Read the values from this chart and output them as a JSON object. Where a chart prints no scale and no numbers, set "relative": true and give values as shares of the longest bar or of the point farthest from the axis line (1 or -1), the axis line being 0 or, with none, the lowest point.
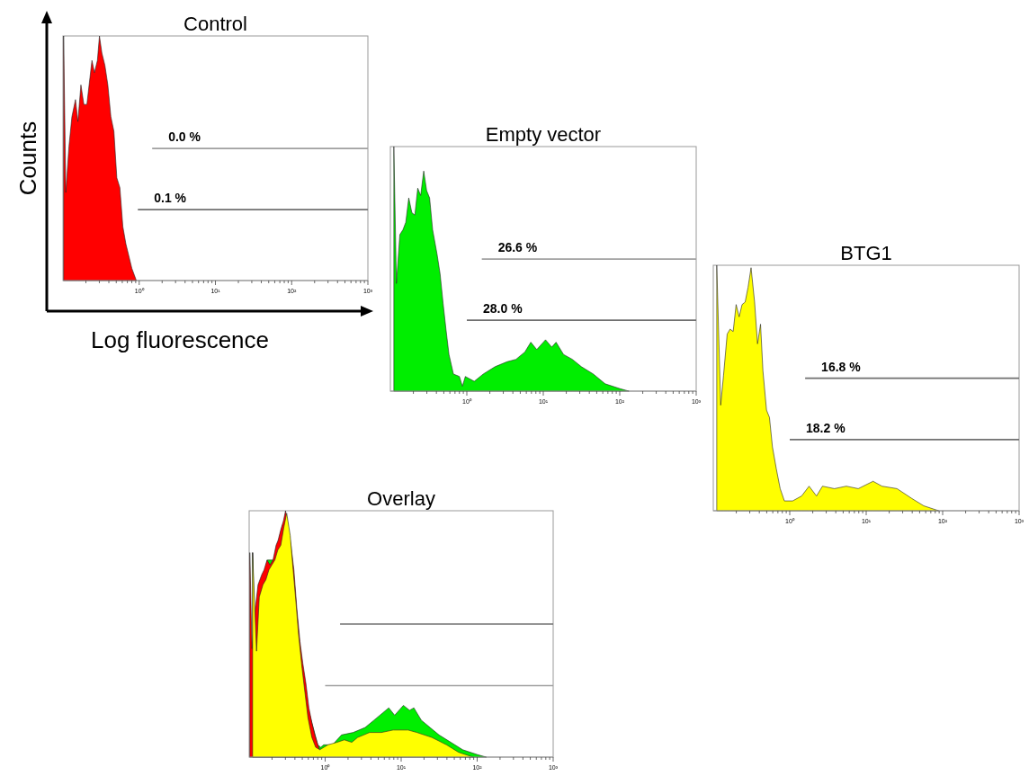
{
  "chart_data": [
    {
      "type": "area",
      "title": "Control",
      "xlabel": "Log fluorescence",
      "ylabel": "Counts",
      "log": "x",
      "relative": true,
      "xlim": [
        0.1,
        1000
      ],
      "xticks": [
        {
          "value": 0.2,
          "label": null
        },
        {
          "value": 0.3,
          "label": null
        },
        {
          "value": 0.4,
          "label": null
        },
        {
          "value": 0.5,
          "label": null
        },
        {
          "value": 0.6,
          "label": null
        },
        {
          "value": 0.7,
          "label": null
        },
        {
          "value": 0.8,
          "label": null
        },
        {
          "value": 0.9,
          "label": null
        },
        {
          "value": 1,
          "label": "10⁰"
        },
        {
          "value": 2,
          "label": null
        },
        {
          "value": 3,
          "label": null
        },
        {
          "value": 4,
          "label": null
        },
        {
          "value": 5,
          "label": null
        },
        {
          "value": 6,
          "label": null
        },
        {
          "value": 7,
          "label": null
        },
        {
          "value": 8,
          "label": null
        },
        {
          "value": 9,
          "label": null
        },
        {
          "value": 10,
          "label": "10¹"
        },
        {
          "value": 20,
          "label": null
        },
        {
          "value": 30,
          "label": null
        },
        {
          "value": 40,
          "label": null
        },
        {
          "value": 50,
          "label": null
        },
        {
          "value": 60,
          "label": null
        },
        {
          "value": 70,
          "label": null
        },
        {
          "value": 80,
          "label": null
        },
        {
          "value": 90,
          "label": null
        },
        {
          "value": 100,
          "label": "10²"
        },
        {
          "value": 200,
          "label": null
        },
        {
          "value": 300,
          "label": null
        },
        {
          "value": 400,
          "label": null
        },
        {
          "value": 500,
          "label": null
        },
        {
          "value": 600,
          "label": null
        },
        {
          "value": 700,
          "label": null
        },
        {
          "value": 800,
          "label": null
        },
        {
          "value": 900,
          "label": null
        },
        {
          "value": 1000,
          "label": "10³"
        }
      ],
      "series": [
        {
          "color": "#ff0000",
          "x": [
            0.102,
            0.109,
            0.12,
            0.131,
            0.146,
            0.157,
            0.172,
            0.188,
            0.206,
            0.226,
            0.24,
            0.259,
            0.283,
            0.301,
            0.324,
            0.355,
            0.388,
            0.425,
            0.466,
            0.509,
            0.558,
            0.611,
            0.669,
            0.732,
            0.801,
            0.918
          ],
          "values": [
            1.0,
            0.36,
            0.55,
            0.67,
            0.74,
            0.65,
            0.8,
            0.72,
            0.72,
            0.83,
            0.9,
            0.85,
            0.9,
            1.0,
            0.93,
            0.88,
            0.8,
            0.67,
            0.61,
            0.42,
            0.38,
            0.22,
            0.15,
            0.1,
            0.05,
            0.0
          ]
        },
        {
          "type": "line",
          "color": "#a0a0a0",
          "x": [
            1.48,
            1000
          ],
          "values": [
            0.54,
            0.54
          ]
        },
        {
          "type": "line",
          "color": "#707070",
          "x": [
            0.96,
            1000
          ],
          "values": [
            0.29,
            0.29
          ]
        }
      ],
      "annotations": [
        {
          "text": "0.0 %",
          "x": 1.48,
          "y": 0.54
        },
        {
          "text": "0.1 %",
          "x": 0.96,
          "y": 0.29
        }
      ]
    },
    {
      "type": "area",
      "title": "Empty vector",
      "log": "x",
      "relative": true,
      "xlim": [
        0.1,
        1000
      ],
      "xticks": [
        {
          "value": 0.2,
          "label": null
        },
        {
          "value": 0.3,
          "label": null
        },
        {
          "value": 0.4,
          "label": null
        },
        {
          "value": 0.5,
          "label": null
        },
        {
          "value": 0.6,
          "label": null
        },
        {
          "value": 0.7,
          "label": null
        },
        {
          "value": 0.8,
          "label": null
        },
        {
          "value": 0.9,
          "label": null
        },
        {
          "value": 1,
          "label": "10⁰"
        },
        {
          "value": 2,
          "label": null
        },
        {
          "value": 3,
          "label": null
        },
        {
          "value": 4,
          "label": null
        },
        {
          "value": 5,
          "label": null
        },
        {
          "value": 6,
          "label": null
        },
        {
          "value": 7,
          "label": null
        },
        {
          "value": 8,
          "label": null
        },
        {
          "value": 9,
          "label": null
        },
        {
          "value": 10,
          "label": "10¹"
        },
        {
          "value": 20,
          "label": null
        },
        {
          "value": 30,
          "label": null
        },
        {
          "value": 40,
          "label": null
        },
        {
          "value": 50,
          "label": null
        },
        {
          "value": 60,
          "label": null
        },
        {
          "value": 70,
          "label": null
        },
        {
          "value": 80,
          "label": null
        },
        {
          "value": 90,
          "label": null
        },
        {
          "value": 100,
          "label": "10²"
        },
        {
          "value": 200,
          "label": null
        },
        {
          "value": 300,
          "label": null
        },
        {
          "value": 400,
          "label": null
        },
        {
          "value": 500,
          "label": null
        },
        {
          "value": 600,
          "label": null
        },
        {
          "value": 700,
          "label": null
        },
        {
          "value": 800,
          "label": null
        },
        {
          "value": 900,
          "label": null
        },
        {
          "value": 1000,
          "label": "10³"
        }
      ],
      "series": [
        {
          "color": "#00ee00",
          "x": [
            0.111,
            0.12,
            0.133,
            0.146,
            0.159,
            0.174,
            0.191,
            0.209,
            0.228,
            0.249,
            0.273,
            0.298,
            0.326,
            0.357,
            0.408,
            0.447,
            0.489,
            0.535,
            0.584,
            0.668,
            0.8,
            0.875,
            0.956,
            1.25,
            1.64,
            2.34,
            3.35,
            4.39,
            5.74,
            6.87,
            8.21,
            10.7,
            12.9,
            14.7,
            18.4,
            24.0,
            31.5,
            45.1,
            64.4,
            101,
            132
          ],
          "values": [
            1.0,
            0.44,
            0.64,
            0.66,
            0.69,
            0.79,
            0.73,
            0.72,
            0.83,
            0.8,
            0.9,
            0.82,
            0.79,
            0.66,
            0.56,
            0.48,
            0.36,
            0.25,
            0.15,
            0.07,
            0.06,
            0.02,
            0.06,
            0.04,
            0.07,
            0.1,
            0.12,
            0.13,
            0.16,
            0.2,
            0.17,
            0.21,
            0.18,
            0.2,
            0.15,
            0.13,
            0.1,
            0.07,
            0.03,
            0.01,
            0.0
          ]
        },
        {
          "type": "line",
          "color": "#a0a0a0",
          "x": [
            1.57,
            1000
          ],
          "values": [
            0.54,
            0.54
          ]
        },
        {
          "type": "line",
          "color": "#707070",
          "x": [
            1.0,
            1000
          ],
          "values": [
            0.29,
            0.29
          ]
        }
      ],
      "annotations": [
        {
          "text": "26.6 %",
          "x": 1.57,
          "y": 0.54
        },
        {
          "text": "28.0 %",
          "x": 1.0,
          "y": 0.29
        }
      ]
    },
    {
      "type": "area",
      "title": "BTG1",
      "log": "x",
      "relative": true,
      "xlim": [
        0.1,
        1000
      ],
      "xticks": [
        {
          "value": 0.2,
          "label": null
        },
        {
          "value": 0.3,
          "label": null
        },
        {
          "value": 0.4,
          "label": null
        },
        {
          "value": 0.5,
          "label": null
        },
        {
          "value": 0.6,
          "label": null
        },
        {
          "value": 0.7,
          "label": null
        },
        {
          "value": 0.8,
          "label": null
        },
        {
          "value": 0.9,
          "label": null
        },
        {
          "value": 1,
          "label": "10⁰"
        },
        {
          "value": 2,
          "label": null
        },
        {
          "value": 3,
          "label": null
        },
        {
          "value": 4,
          "label": null
        },
        {
          "value": 5,
          "label": null
        },
        {
          "value": 6,
          "label": null
        },
        {
          "value": 7,
          "label": null
        },
        {
          "value": 8,
          "label": null
        },
        {
          "value": 9,
          "label": null
        },
        {
          "value": 10,
          "label": "10¹"
        },
        {
          "value": 20,
          "label": null
        },
        {
          "value": 30,
          "label": null
        },
        {
          "value": 40,
          "label": null
        },
        {
          "value": 50,
          "label": null
        },
        {
          "value": 60,
          "label": null
        },
        {
          "value": 70,
          "label": null
        },
        {
          "value": 80,
          "label": null
        },
        {
          "value": 90,
          "label": null
        },
        {
          "value": 100,
          "label": "10²"
        },
        {
          "value": 200,
          "label": null
        },
        {
          "value": 300,
          "label": null
        },
        {
          "value": 400,
          "label": null
        },
        {
          "value": 500,
          "label": null
        },
        {
          "value": 600,
          "label": null
        },
        {
          "value": 700,
          "label": null
        },
        {
          "value": 800,
          "label": null
        },
        {
          "value": 900,
          "label": null
        },
        {
          "value": 1000,
          "label": "10³"
        }
      ],
      "series": [
        {
          "color": "#ffff00",
          "x": [
            0.111,
            0.125,
            0.136,
            0.152,
            0.166,
            0.182,
            0.199,
            0.218,
            0.238,
            0.261,
            0.285,
            0.312,
            0.347,
            0.379,
            0.415,
            0.446,
            0.497,
            0.543,
            0.594,
            0.668,
            0.75,
            0.851,
            1.09,
            1.43,
            1.79,
            2.24,
            2.68,
            3.84,
            5.5,
            7.87,
            12.3,
            16.1,
            25.3,
            39.5,
            56.6,
            88.7
          ],
          "values": [
            1.0,
            0.43,
            0.55,
            0.72,
            0.74,
            0.73,
            0.84,
            0.79,
            0.84,
            0.85,
            0.91,
            0.99,
            0.85,
            0.68,
            0.76,
            0.57,
            0.41,
            0.38,
            0.26,
            0.17,
            0.09,
            0.04,
            0.04,
            0.06,
            0.1,
            0.06,
            0.1,
            0.09,
            0.1,
            0.09,
            0.12,
            0.1,
            0.09,
            0.05,
            0.02,
            0.0
          ]
        },
        {
          "type": "line",
          "color": "#707070",
          "x": [
            1.59,
            1000
          ],
          "values": [
            0.54,
            0.54
          ]
        },
        {
          "type": "line",
          "color": "#707070",
          "x": [
            1.0,
            1000
          ],
          "values": [
            0.29,
            0.29
          ]
        }
      ],
      "annotations": [
        {
          "text": "16.8 %",
          "x": 1.59,
          "y": 0.54
        },
        {
          "text": "18.2 %",
          "x": 1.0,
          "y": 0.29
        }
      ]
    },
    {
      "type": "area",
      "title": "Overlay",
      "log": "x",
      "relative": true,
      "xlim": [
        0.1,
        1000
      ],
      "xticks": [
        {
          "value": 0.2,
          "label": null
        },
        {
          "value": 0.3,
          "label": null
        },
        {
          "value": 0.4,
          "label": null
        },
        {
          "value": 0.5,
          "label": null
        },
        {
          "value": 0.6,
          "label": null
        },
        {
          "value": 0.7,
          "label": null
        },
        {
          "value": 0.8,
          "label": null
        },
        {
          "value": 0.9,
          "label": null
        },
        {
          "value": 1,
          "label": "10⁰"
        },
        {
          "value": 2,
          "label": null
        },
        {
          "value": 3,
          "label": null
        },
        {
          "value": 4,
          "label": null
        },
        {
          "value": 5,
          "label": null
        },
        {
          "value": 6,
          "label": null
        },
        {
          "value": 7,
          "label": null
        },
        {
          "value": 8,
          "label": null
        },
        {
          "value": 9,
          "label": null
        },
        {
          "value": 10,
          "label": "10¹"
        },
        {
          "value": 20,
          "label": null
        },
        {
          "value": 30,
          "label": null
        },
        {
          "value": 40,
          "label": null
        },
        {
          "value": 50,
          "label": null
        },
        {
          "value": 60,
          "label": null
        },
        {
          "value": 70,
          "label": null
        },
        {
          "value": 80,
          "label": null
        },
        {
          "value": 90,
          "label": null
        },
        {
          "value": 100,
          "label": "10²"
        },
        {
          "value": 200,
          "label": null
        },
        {
          "value": 300,
          "label": null
        },
        {
          "value": 400,
          "label": null
        },
        {
          "value": 500,
          "label": null
        },
        {
          "value": 600,
          "label": null
        },
        {
          "value": 700,
          "label": null
        },
        {
          "value": 800,
          "label": null
        },
        {
          "value": 900,
          "label": null
        },
        {
          "value": 1000,
          "label": "10³"
        }
      ],
      "series": [
        {
          "color": "#00ee00",
          "x": [
            0.111,
            0.12,
            0.133,
            0.146,
            0.159,
            0.174,
            0.191,
            0.209,
            0.228,
            0.249,
            0.273,
            0.298,
            0.326,
            0.357,
            0.408,
            0.447,
            0.489,
            0.535,
            0.584,
            0.668,
            0.8,
            0.875,
            0.956,
            1.25,
            1.64,
            2.34,
            3.35,
            4.39,
            5.74,
            6.87,
            8.21,
            10.7,
            12.9,
            14.7,
            18.4,
            24.0,
            31.5,
            45.1,
            64.4,
            101,
            132
          ],
          "values": [
            0.83,
            0.48,
            0.7,
            0.72,
            0.75,
            0.8,
            null,
            0.8,
            0.84,
            null,
            0.94,
            0.96,
            0.9,
            0.76,
            0.6,
            0.47,
            0.36,
            0.25,
            null,
            null,
            0.05,
            0.04,
            0.05,
            0.05,
            0.09,
            0.1,
            0.12,
            0.15,
            0.18,
            0.2,
            0.17,
            0.21,
            0.19,
            0.2,
            0.15,
            0.12,
            0.09,
            0.06,
            0.03,
            0.01,
            0.0
          ]
        },
        {
          "color": "#ff0000",
          "x": [
            0.102,
            0.109,
            0.12,
            0.131,
            0.146,
            0.157,
            0.172,
            0.188,
            0.206,
            0.226,
            0.24,
            0.259,
            0.283,
            0.301,
            0.324,
            0.355,
            0.388,
            0.425,
            0.466,
            0.509,
            0.558,
            0.611,
            0.669,
            0.732,
            0.801,
            0.918
          ],
          "values": [
            0.83,
            0.44,
            0.6,
            0.7,
            0.74,
            0.76,
            0.8,
            0.78,
            0.8,
            0.86,
            0.88,
            0.92,
            0.96,
            1.0,
            0.94,
            0.86,
            0.76,
            0.6,
            0.47,
            0.38,
            0.3,
            0.2,
            0.14,
            0.09,
            0.05,
            0.0
          ]
        },
        {
          "color": "#ffff00",
          "x": [
            0.111,
            0.125,
            0.136,
            0.152,
            0.166,
            0.182,
            0.199,
            0.218,
            0.238,
            0.261,
            0.285,
            0.312,
            0.347,
            0.379,
            0.415,
            0.446,
            0.497,
            0.543,
            0.594,
            0.668,
            0.75,
            0.851,
            1.09,
            1.43,
            1.79,
            2.24,
            2.68,
            3.84,
            5.5,
            7.87,
            12.3,
            16.1,
            25.3,
            39.5,
            56.6,
            88.7
          ],
          "values": [
            0.83,
            0.43,
            0.65,
            0.7,
            0.72,
            0.76,
            0.78,
            0.8,
            0.84,
            0.86,
            0.93,
            0.99,
            0.9,
            0.76,
            0.62,
            0.5,
            0.36,
            0.26,
            0.16,
            0.08,
            0.04,
            0.03,
            0.05,
            0.06,
            0.07,
            0.06,
            0.08,
            0.1,
            0.1,
            0.11,
            0.11,
            0.1,
            0.08,
            0.05,
            0.02,
            0.0
          ]
        },
        {
          "type": "line",
          "color": "#707070",
          "x": [
            1.57,
            1000
          ],
          "values": [
            0.54,
            0.54
          ]
        },
        {
          "type": "line",
          "color": "#a0a0a0",
          "x": [
            1.0,
            1000
          ],
          "values": [
            0.29,
            0.29
          ]
        }
      ]
    }
  ]
}
